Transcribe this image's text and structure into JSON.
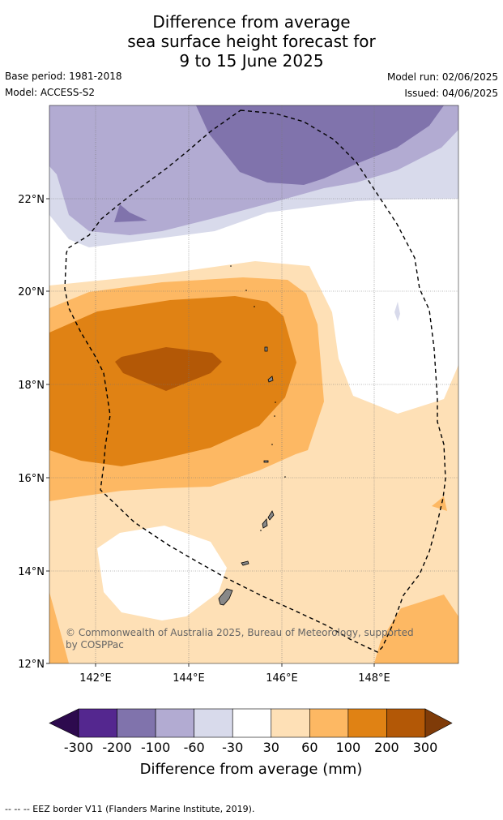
{
  "header": {
    "title_line1": "Difference from average",
    "title_line2": "sea surface height forecast for",
    "title_line3": "9 to 15 June 2025",
    "base_period": "Base period: 1981-2018",
    "model": "Model: ACCESS-S2",
    "model_run": "Model run: 02/06/2025",
    "issued": "Issued: 04/06/2025"
  },
  "map": {
    "lon_range": [
      141,
      149.8
    ],
    "lat_range": [
      12,
      24
    ],
    "lon_ticks": [
      "142°E",
      "144°E",
      "146°E",
      "148°E"
    ],
    "lat_ticks": [
      "22°N",
      "20°N",
      "18°N",
      "16°N",
      "14°N",
      "12°N"
    ],
    "copyright_line1": "© Commonwealth of Australia 2025, Bureau of Meteorology, supported",
    "copyright_line2": "by COSPPac"
  },
  "colorbar": {
    "labels": [
      "-300",
      "-200",
      "-100",
      "-60",
      "-30",
      "30",
      "60",
      "100",
      "200",
      "300"
    ],
    "colors": [
      "#2d0a4e",
      "#54278f",
      "#8073ac",
      "#b2abd2",
      "#d8daeb",
      "#ffffff",
      "#fee0b6",
      "#fdb863",
      "#e08214",
      "#b35806",
      "#7f3b08"
    ],
    "title": "Difference from average (mm)"
  },
  "footer": {
    "legend_text": "--  --  -- EEZ border V11 (Flanders Marine Institute, 2019)."
  }
}
